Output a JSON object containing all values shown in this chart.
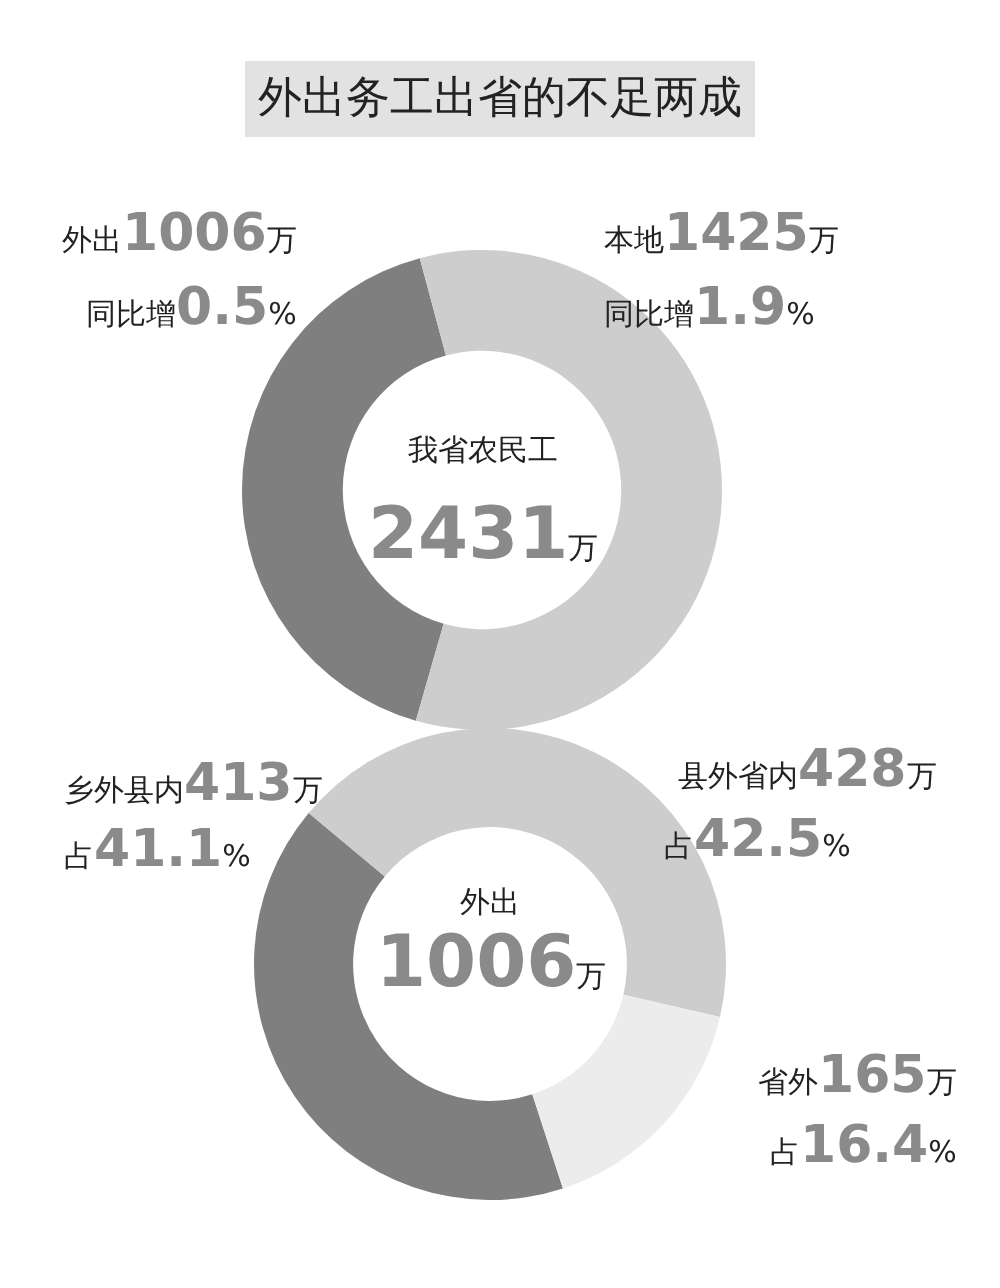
{
  "chart_data": [
    {
      "type": "donut",
      "title": "外出务工出省的不足两成",
      "categories": [
        "外出",
        "本地"
      ],
      "values": [
        1006,
        1425
      ],
      "value_labels": [
        "1006万",
        "1425万"
      ],
      "colors": [
        "#7f7f7f",
        "#cdcdcd"
      ],
      "annotations": [
        "我省农民工",
        "2431万",
        "同比增0.5%",
        "同比增1.9%"
      ]
    },
    {
      "type": "donut",
      "categories": [
        "乡外县内",
        "县外省内",
        "省外"
      ],
      "values": [
        413,
        428,
        165
      ],
      "value_labels": [
        "413万",
        "428万",
        "165万"
      ],
      "colors": [
        "#7f7f7f",
        "#cdcdcd",
        "#ececec"
      ],
      "annotations": [
        "外出",
        "1006万",
        "占41.1%",
        "占42.5%",
        "占16.4%"
      ]
    }
  ]
}
